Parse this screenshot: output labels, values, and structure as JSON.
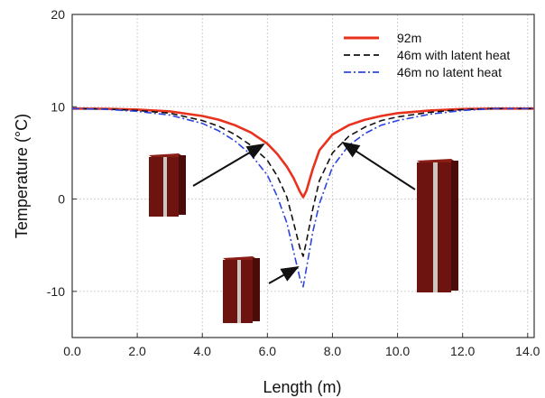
{
  "chart_data": {
    "type": "line",
    "xlabel": "Length (m)",
    "ylabel": "Temperature (°C)",
    "xlim": [
      0,
      14.2
    ],
    "ylim": [
      -15,
      20
    ],
    "x_ticks": [
      0,
      2,
      4,
      6,
      8,
      10,
      12,
      14
    ],
    "x_tick_labels": [
      "0.0",
      "2.0",
      "4.0",
      "6.0",
      "8.0",
      "10.0",
      "12.0",
      "14.0"
    ],
    "y_ticks": [
      -10,
      0,
      10,
      20
    ],
    "y_tick_labels": [
      "-10",
      "0",
      "10",
      "20"
    ],
    "grid": true,
    "legend_position": "top-right",
    "series": [
      {
        "name": "92m",
        "color": "#e8321e",
        "style": "solid",
        "x": [
          0,
          1,
          2,
          3,
          4,
          4.5,
          5,
          5.5,
          6,
          6.3,
          6.6,
          6.8,
          7.0,
          7.1,
          7.2,
          7.4,
          7.6,
          8.0,
          8.5,
          9,
          9.5,
          10,
          11,
          12,
          13,
          14.2
        ],
        "y": [
          9.8,
          9.78,
          9.7,
          9.5,
          9.0,
          8.6,
          8.0,
          7.2,
          6.0,
          4.9,
          3.5,
          2.3,
          0.8,
          0.2,
          0.9,
          3.3,
          5.3,
          7.0,
          8.0,
          8.6,
          9.0,
          9.3,
          9.6,
          9.75,
          9.8,
          9.8
        ]
      },
      {
        "name": "46m with latent heat",
        "color": "#111111",
        "style": "dashed",
        "x": [
          0,
          1,
          2,
          3,
          4,
          4.5,
          5,
          5.5,
          6,
          6.3,
          6.6,
          6.8,
          7.0,
          7.1,
          7.2,
          7.4,
          7.6,
          8.0,
          8.5,
          9,
          9.5,
          10,
          11,
          12,
          13,
          14.2
        ],
        "y": [
          9.8,
          9.75,
          9.6,
          9.3,
          8.5,
          7.9,
          7.0,
          5.8,
          4.2,
          2.5,
          0.2,
          -2.5,
          -5.3,
          -6.2,
          -4.6,
          -1.0,
          2.0,
          5.0,
          6.8,
          7.8,
          8.5,
          8.9,
          9.4,
          9.7,
          9.8,
          9.8
        ]
      },
      {
        "name": "46m no latent heat",
        "color": "#2b44e0",
        "style": "dashdot",
        "x": [
          0,
          1,
          2,
          3,
          4,
          4.5,
          5,
          5.5,
          6,
          6.3,
          6.6,
          6.8,
          7.0,
          7.1,
          7.2,
          7.4,
          7.6,
          8.0,
          8.5,
          9,
          9.5,
          10,
          11,
          12,
          13,
          14.2
        ],
        "y": [
          9.8,
          9.72,
          9.5,
          9.1,
          8.2,
          7.4,
          6.3,
          4.8,
          2.6,
          0.3,
          -2.6,
          -5.6,
          -8.6,
          -9.5,
          -7.5,
          -3.5,
          -0.5,
          3.5,
          5.8,
          7.1,
          8.0,
          8.5,
          9.2,
          9.6,
          9.8,
          9.8
        ]
      }
    ]
  },
  "colors": {
    "pile_dark": "#6e1410",
    "pile_mid": "#9a2218",
    "pile_light": "#c9c4bd",
    "arrow": "#111111"
  }
}
